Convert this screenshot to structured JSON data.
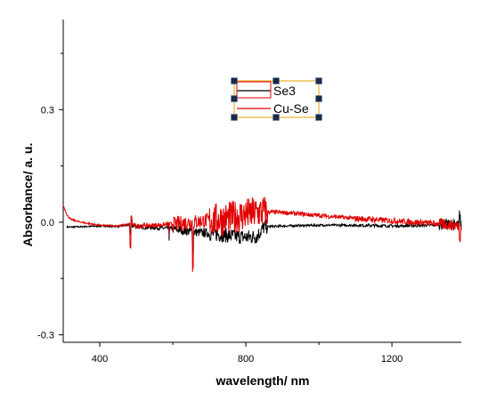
{
  "chart_data": {
    "type": "line",
    "xlabel": "wavelength/ nm",
    "ylabel": "Absorbance/ a. u.",
    "xlim": [
      300,
      1390
    ],
    "ylim": [
      -0.32,
      0.54
    ],
    "x_ticks": [
      400,
      800,
      1200
    ],
    "x_tick_labels": [
      "400",
      "800",
      "1200"
    ],
    "y_ticks": [
      -0.3,
      0.0,
      0.3
    ],
    "y_tick_labels": [
      "-0.3",
      "0.0",
      "0.3"
    ],
    "grid": false,
    "legend_position": "top-center",
    "series": [
      {
        "name": "Se3",
        "color": "#000000",
        "x": [
          310,
          350,
          400,
          450,
          480,
          500,
          550,
          600,
          650,
          700,
          750,
          800,
          830,
          850,
          900,
          1000,
          1100,
          1200,
          1300,
          1350,
          1390
        ],
        "y": [
          -0.013,
          -0.012,
          -0.01,
          -0.011,
          -0.008,
          -0.012,
          -0.014,
          -0.018,
          -0.025,
          -0.03,
          -0.035,
          -0.04,
          -0.038,
          -0.012,
          -0.01,
          -0.008,
          -0.008,
          -0.01,
          -0.008,
          -0.005,
          -0.01
        ]
      },
      {
        "name": "Cu-Se",
        "color": "#e00000",
        "x": [
          300,
          310,
          320,
          340,
          360,
          400,
          450,
          480,
          500,
          550,
          600,
          650,
          700,
          750,
          800,
          830,
          850,
          900,
          1000,
          1100,
          1200,
          1300,
          1350,
          1390
        ],
        "y": [
          0.045,
          0.02,
          0.008,
          0.002,
          -0.002,
          -0.008,
          -0.01,
          -0.005,
          -0.01,
          -0.008,
          -0.005,
          0.0,
          0.005,
          0.01,
          0.02,
          0.025,
          0.028,
          0.026,
          0.018,
          0.01,
          0.004,
          -0.002,
          -0.006,
          -0.01
        ]
      }
    ]
  }
}
